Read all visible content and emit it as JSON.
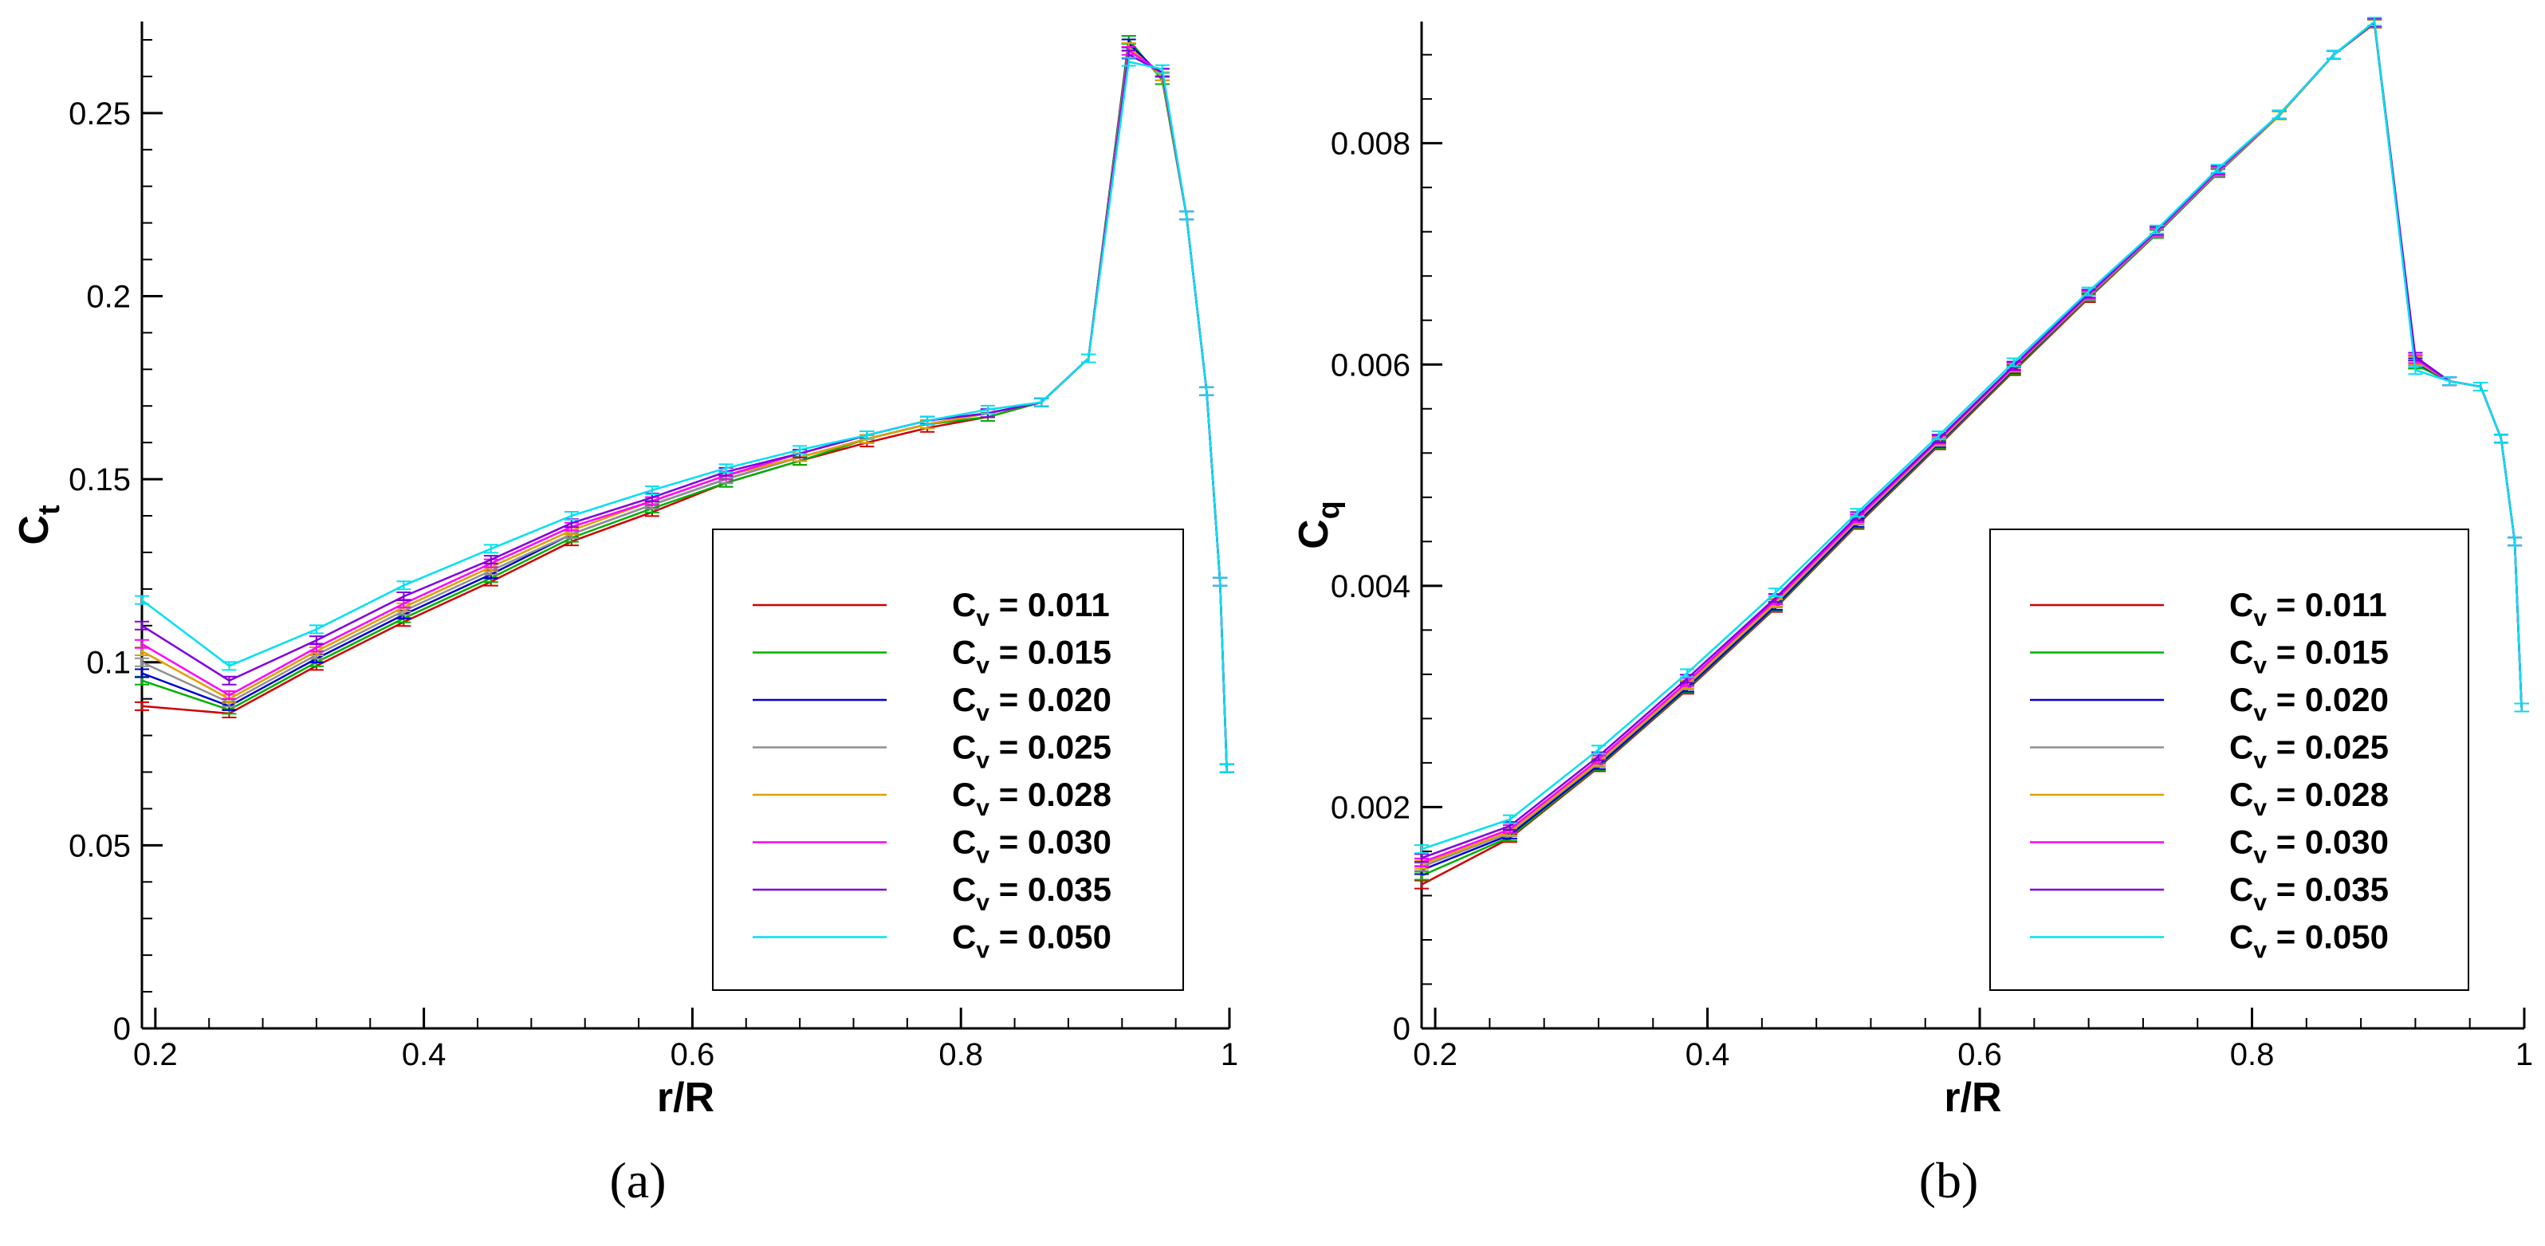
{
  "chart_data": [
    {
      "type": "line",
      "panel_label": "(a)",
      "xlabel": "r/R",
      "ylabel_main": "C",
      "ylabel_sub": "t",
      "xlim": [
        0.19,
        1.0
      ],
      "ylim": [
        0,
        0.275
      ],
      "xticks": [
        0.2,
        0.4,
        0.6,
        0.8,
        1
      ],
      "xtick_labels": [
        "0.2",
        "0.4",
        "0.6",
        "0.8",
        "1"
      ],
      "yticks": [
        0,
        0.05,
        0.1,
        0.15,
        0.2,
        0.25
      ],
      "ytick_labels": [
        "0",
        "0.05",
        "0.1",
        "0.15",
        "0.2",
        "0.25"
      ],
      "legend_position": "lower-right",
      "x": [
        0.19,
        0.255,
        0.32,
        0.385,
        0.45,
        0.51,
        0.57,
        0.625,
        0.68,
        0.73,
        0.775,
        0.82,
        0.86,
        0.895,
        0.925,
        0.95,
        0.968,
        0.983,
        0.993,
        0.998
      ],
      "series": [
        {
          "name_main": "C",
          "name_sub": "v",
          "name_value": " = 0.011",
          "color": "#d00000",
          "values": [
            0.088,
            0.086,
            0.099,
            0.111,
            0.122,
            0.133,
            0.141,
            0.149,
            0.155,
            0.16,
            0.164,
            0.167,
            0.171,
            0.183,
            0.27,
            0.259,
            0.222,
            0.174,
            0.122,
            0.071
          ]
        },
        {
          "name_main": "C",
          "name_sub": "v",
          "name_value": " = 0.015",
          "color": "#00b000",
          "values": [
            0.095,
            0.087,
            0.1,
            0.112,
            0.123,
            0.134,
            0.142,
            0.149,
            0.155,
            0.161,
            0.165,
            0.167,
            0.171,
            0.183,
            0.27,
            0.259,
            0.222,
            0.174,
            0.122,
            0.071
          ]
        },
        {
          "name_main": "C",
          "name_sub": "v",
          "name_value": " = 0.020",
          "color": "#0000d0",
          "values": [
            0.097,
            0.088,
            0.101,
            0.113,
            0.124,
            0.135,
            0.143,
            0.15,
            0.156,
            0.161,
            0.165,
            0.168,
            0.171,
            0.183,
            0.269,
            0.26,
            0.222,
            0.174,
            0.122,
            0.071
          ]
        },
        {
          "name_main": "C",
          "name_sub": "v",
          "name_value": " = 0.025",
          "color": "#909090",
          "values": [
            0.1,
            0.089,
            0.102,
            0.114,
            0.125,
            0.135,
            0.143,
            0.15,
            0.156,
            0.161,
            0.165,
            0.168,
            0.171,
            0.183,
            0.268,
            0.26,
            0.222,
            0.174,
            0.122,
            0.071
          ]
        },
        {
          "name_main": "C",
          "name_sub": "v",
          "name_value": " = 0.028",
          "color": "#e0a000",
          "values": [
            0.103,
            0.09,
            0.103,
            0.115,
            0.126,
            0.136,
            0.144,
            0.151,
            0.156,
            0.161,
            0.165,
            0.168,
            0.171,
            0.183,
            0.268,
            0.26,
            0.222,
            0.174,
            0.122,
            0.071
          ]
        },
        {
          "name_main": "C",
          "name_sub": "v",
          "name_value": " = 0.030",
          "color": "#ff00ff",
          "values": [
            0.105,
            0.091,
            0.104,
            0.116,
            0.127,
            0.137,
            0.144,
            0.151,
            0.157,
            0.162,
            0.166,
            0.168,
            0.171,
            0.183,
            0.267,
            0.261,
            0.222,
            0.174,
            0.122,
            0.071
          ]
        },
        {
          "name_main": "C",
          "name_sub": "v",
          "name_value": " = 0.035",
          "color": "#8000e0",
          "values": [
            0.11,
            0.095,
            0.106,
            0.118,
            0.128,
            0.138,
            0.145,
            0.152,
            0.157,
            0.162,
            0.166,
            0.168,
            0.171,
            0.183,
            0.266,
            0.261,
            0.222,
            0.174,
            0.122,
            0.071
          ]
        },
        {
          "name_main": "C",
          "name_sub": "v",
          "name_value": " = 0.050",
          "color": "#00e0f0",
          "values": [
            0.117,
            0.099,
            0.109,
            0.121,
            0.131,
            0.14,
            0.147,
            0.153,
            0.158,
            0.162,
            0.166,
            0.169,
            0.171,
            0.183,
            0.264,
            0.262,
            0.222,
            0.174,
            0.122,
            0.071
          ]
        }
      ]
    },
    {
      "type": "line",
      "panel_label": "(b)",
      "xlabel": "r/R",
      "ylabel_main": "C",
      "ylabel_sub": "q",
      "xlim": [
        0.19,
        1.0
      ],
      "ylim": [
        0,
        0.0091
      ],
      "xticks": [
        0.2,
        0.4,
        0.6,
        0.8,
        1
      ],
      "xtick_labels": [
        "0.2",
        "0.4",
        "0.6",
        "0.8",
        "1"
      ],
      "yticks": [
        0,
        0.002,
        0.004,
        0.006,
        0.008
      ],
      "ytick_labels": [
        "0",
        "0.002",
        "0.004",
        "0.006",
        "0.008"
      ],
      "legend_position": "lower-right",
      "x": [
        0.19,
        0.255,
        0.32,
        0.385,
        0.45,
        0.51,
        0.57,
        0.625,
        0.68,
        0.73,
        0.775,
        0.82,
        0.86,
        0.89,
        0.92,
        0.945,
        0.968,
        0.983,
        0.993,
        0.998
      ],
      "series": [
        {
          "name_main": "C",
          "name_sub": "v",
          "name_value": " = 0.011",
          "color": "#d00000",
          "values": [
            0.0013,
            0.00172,
            0.00236,
            0.00306,
            0.0038,
            0.00455,
            0.00527,
            0.00594,
            0.0066,
            0.00718,
            0.00773,
            0.00825,
            0.0088,
            0.00908,
            0.006,
            0.00585,
            0.0058,
            0.00533,
            0.0044,
            0.0029
          ]
        },
        {
          "name_main": "C",
          "name_sub": "v",
          "name_value": " = 0.015",
          "color": "#00b000",
          "values": [
            0.00138,
            0.00173,
            0.00237,
            0.00307,
            0.00381,
            0.00456,
            0.00528,
            0.00595,
            0.00661,
            0.00718,
            0.00773,
            0.00825,
            0.0088,
            0.00908,
            0.006,
            0.00585,
            0.0058,
            0.00533,
            0.0044,
            0.0029
          ]
        },
        {
          "name_main": "C",
          "name_sub": "v",
          "name_value": " = 0.020",
          "color": "#0000d0",
          "values": [
            0.00143,
            0.00175,
            0.00238,
            0.00308,
            0.00382,
            0.00457,
            0.00529,
            0.00596,
            0.00662,
            0.00719,
            0.00774,
            0.00825,
            0.0088,
            0.00908,
            0.00602,
            0.00585,
            0.0058,
            0.00533,
            0.0044,
            0.0029
          ]
        },
        {
          "name_main": "C",
          "name_sub": "v",
          "name_value": " = 0.025",
          "color": "#909090",
          "values": [
            0.00146,
            0.00177,
            0.0024,
            0.0031,
            0.00384,
            0.00459,
            0.0053,
            0.00597,
            0.00662,
            0.00719,
            0.00774,
            0.00825,
            0.0088,
            0.00908,
            0.00603,
            0.00585,
            0.0058,
            0.00533,
            0.0044,
            0.0029
          ]
        },
        {
          "name_main": "C",
          "name_sub": "v",
          "name_value": " = 0.028",
          "color": "#e0a000",
          "values": [
            0.00148,
            0.00178,
            0.00241,
            0.00311,
            0.00385,
            0.0046,
            0.00531,
            0.00597,
            0.00663,
            0.0072,
            0.00775,
            0.00825,
            0.0088,
            0.00908,
            0.00604,
            0.00585,
            0.0058,
            0.00533,
            0.0044,
            0.0029
          ]
        },
        {
          "name_main": "C",
          "name_sub": "v",
          "name_value": " = 0.030",
          "color": "#ff00ff",
          "values": [
            0.0015,
            0.0018,
            0.00243,
            0.00313,
            0.00387,
            0.00461,
            0.00532,
            0.00598,
            0.00663,
            0.0072,
            0.00775,
            0.00826,
            0.0088,
            0.00909,
            0.00605,
            0.00585,
            0.0058,
            0.00533,
            0.0044,
            0.0029
          ]
        },
        {
          "name_main": "C",
          "name_sub": "v",
          "name_value": " = 0.035",
          "color": "#8000e0",
          "values": [
            0.00154,
            0.00183,
            0.00246,
            0.00316,
            0.00389,
            0.00463,
            0.00533,
            0.00599,
            0.00664,
            0.00721,
            0.00776,
            0.00826,
            0.0088,
            0.00909,
            0.00607,
            0.00585,
            0.0058,
            0.00533,
            0.0044,
            0.0029
          ]
        },
        {
          "name_main": "C",
          "name_sub": "v",
          "name_value": " = 0.050",
          "color": "#00e0f0",
          "values": [
            0.00162,
            0.00189,
            0.00252,
            0.00321,
            0.00394,
            0.00466,
            0.00536,
            0.00602,
            0.00666,
            0.00722,
            0.00777,
            0.00826,
            0.0088,
            0.0091,
            0.00595,
            0.00585,
            0.0058,
            0.00533,
            0.0044,
            0.0029
          ]
        }
      ]
    }
  ]
}
